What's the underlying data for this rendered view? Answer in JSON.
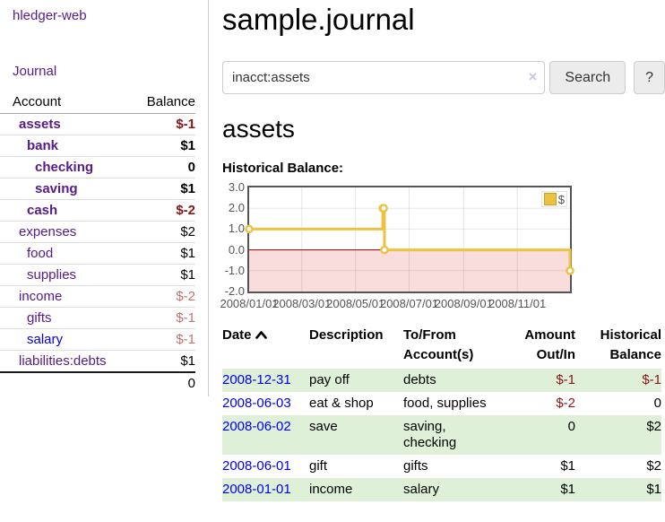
{
  "colors": {
    "link_purple": "#551a8b",
    "link_blue": "#0000ee",
    "negative_dark_red": "#8b1616",
    "negative_muted_red": "#bd7373",
    "row_highlight_green": "#dff0d8",
    "chart_series_gold": "#edc240",
    "chart_zero_line": "#8b0000",
    "chart_negative_fill": "#f9dcdc",
    "chart_frame_gray": "#545454"
  },
  "sidebar": {
    "brand": "hledger-web",
    "nav_journal": "Journal",
    "accounts": {
      "col_account": "Account",
      "col_balance": "Balance",
      "rows": [
        {
          "name": "assets",
          "balance": "$-1",
          "depth": 1,
          "bold": true,
          "balance_tone": "dark_red",
          "link_tone": "purple"
        },
        {
          "name": "bank",
          "balance": "$1",
          "depth": 2,
          "bold": true,
          "balance_tone": "normal",
          "link_tone": "purple"
        },
        {
          "name": "checking",
          "balance": "0",
          "depth": 3,
          "bold": true,
          "balance_tone": "normal",
          "link_tone": "purple"
        },
        {
          "name": "saving",
          "balance": "$1",
          "depth": 3,
          "bold": true,
          "balance_tone": "normal",
          "link_tone": "purple"
        },
        {
          "name": "cash",
          "balance": "$-2",
          "depth": 2,
          "bold": true,
          "balance_tone": "dark_red",
          "link_tone": "purple"
        },
        {
          "name": "expenses",
          "balance": "$2",
          "depth": 1,
          "bold": false,
          "balance_tone": "normal",
          "link_tone": "purple"
        },
        {
          "name": "food",
          "balance": "$1",
          "depth": 2,
          "bold": false,
          "balance_tone": "normal",
          "link_tone": "purple"
        },
        {
          "name": "supplies",
          "balance": "$1",
          "depth": 2,
          "bold": false,
          "balance_tone": "normal",
          "link_tone": "purple"
        },
        {
          "name": "income",
          "balance": "$-2",
          "depth": 1,
          "bold": false,
          "balance_tone": "muted_red",
          "link_tone": "purple"
        },
        {
          "name": "gifts",
          "balance": "$-1",
          "depth": 2,
          "bold": false,
          "balance_tone": "muted_red",
          "link_tone": "purple"
        },
        {
          "name": "salary",
          "balance": "$-1",
          "depth": 2,
          "bold": false,
          "balance_tone": "muted_red",
          "link_tone": "blue"
        },
        {
          "name": "liabilities:debts",
          "balance": "$1",
          "depth": 1,
          "bold": false,
          "balance_tone": "normal",
          "link_tone": "purple"
        }
      ],
      "total": "0"
    }
  },
  "main": {
    "title": "sample.journal",
    "search": {
      "value": "inacct:assets",
      "clear_icon": "×",
      "search_button": "Search",
      "help_button": "?"
    },
    "account_heading": "assets",
    "chart_label": "Historical Balance:"
  },
  "chart_data": {
    "type": "line",
    "title": "Historical Balance",
    "step": true,
    "x_type": "date",
    "series": [
      {
        "name": "$",
        "color": "#edc240",
        "points": [
          [
            "2008-01-01",
            1
          ],
          [
            "2008-06-01",
            2
          ],
          [
            "2008-06-02",
            2
          ],
          [
            "2008-06-03",
            0
          ],
          [
            "2008-12-31",
            -1
          ]
        ]
      }
    ],
    "xlim": [
      "2008-01-01",
      "2008-12-31"
    ],
    "ylim": [
      -2.0,
      3.0
    ],
    "yticks": [
      {
        "label": "3.0",
        "value": 3
      },
      {
        "label": "2.0",
        "value": 2
      },
      {
        "label": "1.0",
        "value": 1
      },
      {
        "label": "0.0",
        "value": 0
      },
      {
        "label": "-1.0",
        "value": -1
      },
      {
        "label": "-2.0",
        "value": -2
      }
    ],
    "xticks": [
      {
        "label": "2008/01/01",
        "date": "2008-01-01"
      },
      {
        "label": "2008/03/01",
        "date": "2008-03-01"
      },
      {
        "label": "2008/05/01",
        "date": "2008-05-01"
      },
      {
        "label": "2008/07/01",
        "date": "2008-07-01"
      },
      {
        "label": "2008/09/01",
        "date": "2008-09-01"
      },
      {
        "label": "2008/11/01",
        "date": "2008-11-01"
      }
    ],
    "legend": {
      "label": "$",
      "position": "top-right"
    },
    "grid": true,
    "negative_region_shaded": true,
    "zero_line": true
  },
  "register": {
    "headers": [
      "Date",
      "Description",
      "To/From Account(s)",
      "Amount Out/In",
      "Historical Balance"
    ],
    "sort": {
      "column": "Date",
      "direction": "ascending"
    },
    "rows": [
      {
        "date": "2008-12-31",
        "description": "pay off",
        "accounts": "debts",
        "amount": "$-1",
        "amount_negative": true,
        "balance": "$-1",
        "balance_negative": true,
        "highlighted": true
      },
      {
        "date": "2008-06-03",
        "description": "eat & shop",
        "accounts": "food, supplies",
        "amount": "$-2",
        "amount_negative": true,
        "balance": "0",
        "balance_negative": false,
        "highlighted": false
      },
      {
        "date": "2008-06-02",
        "description": "save",
        "accounts": "saving, checking",
        "amount": "0",
        "amount_negative": false,
        "balance": "$2",
        "balance_negative": false,
        "highlighted": true
      },
      {
        "date": "2008-06-01",
        "description": "gift",
        "accounts": "gifts",
        "amount": "$1",
        "amount_negative": false,
        "balance": "$2",
        "balance_negative": false,
        "highlighted": false
      },
      {
        "date": "2008-01-01",
        "description": "income",
        "accounts": "salary",
        "amount": "$1",
        "amount_negative": false,
        "balance": "$1",
        "balance_negative": false,
        "highlighted": true
      }
    ]
  }
}
